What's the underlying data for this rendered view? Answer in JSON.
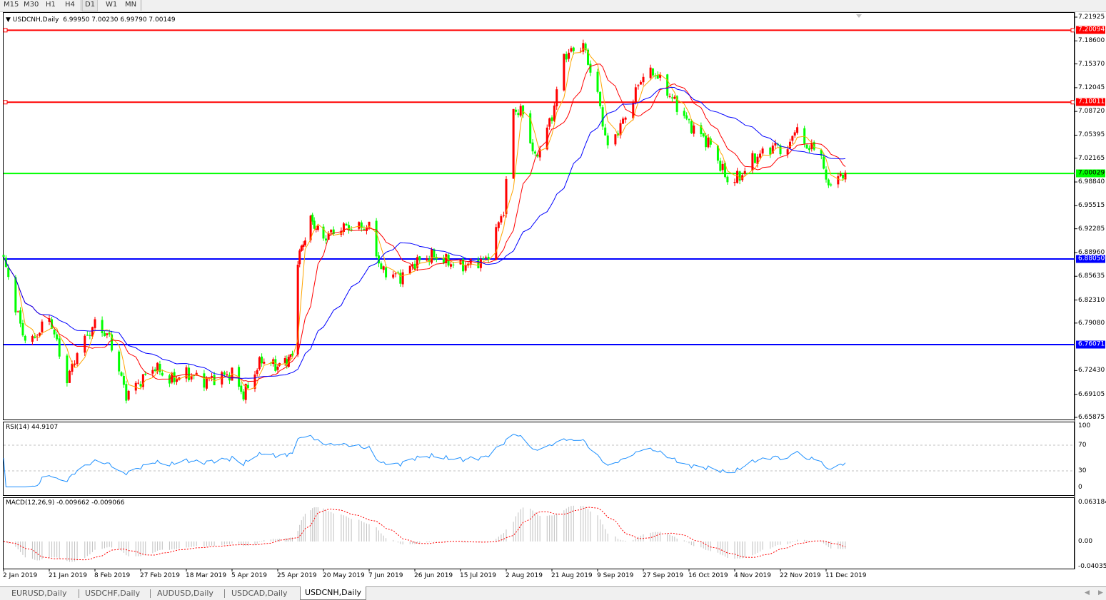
{
  "toolbar": {
    "timeframes": [
      "M15",
      "M30",
      "H1",
      "H4",
      "D1",
      "W1",
      "MN"
    ],
    "active": "D1"
  },
  "chart": {
    "symbol_header": "USDCNH,Daily",
    "ohlc": "6.99950 7.00230 6.99790 7.00149",
    "colors": {
      "up": "#ff0000",
      "down": "#00ff00",
      "ma_fast": "#ffa500",
      "ma_mid": "#ff0000",
      "ma_slow": "#0000ff",
      "rsi": "#1e90ff",
      "macd_hist": "#c0c0c0",
      "macd_signal": "#ff0000"
    }
  },
  "chart_data": {
    "type": "candlestick",
    "symbol": "USDCNH",
    "timeframe": "Daily",
    "price_axis_ticks": [
      "7.21925",
      "7.18600",
      "7.15370",
      "7.12045",
      "7.08720",
      "7.05395",
      "7.02165",
      "6.98840",
      "6.95515",
      "6.92285",
      "6.88960",
      "6.85635",
      "6.82310",
      "6.79080",
      "6.72430",
      "6.69105",
      "6.65875"
    ],
    "ylim": [
      6.65875,
      7.21925
    ],
    "horizontal_lines": [
      {
        "price": "7.20094",
        "color": "#ff0000"
      },
      {
        "price": "7.10011",
        "color": "#ff0000"
      },
      {
        "price": "7.00029",
        "color": "#00ff00"
      },
      {
        "price": "6.88050",
        "color": "#0000ff"
      },
      {
        "price": "6.76071",
        "color": "#0000ff"
      }
    ],
    "date_labels": [
      "2 Jan 2019",
      "21 Jan 2019",
      "8 Feb 2019",
      "27 Feb 2019",
      "18 Mar 2019",
      "5 Apr 2019",
      "25 Apr 2019",
      "20 May 2019",
      "7 Jun 2019",
      "26 Jun 2019",
      "15 Jul 2019",
      "2 Aug 2019",
      "21 Aug 2019",
      "9 Sep 2019",
      "27 Sep 2019",
      "16 Oct 2019",
      "4 Nov 2019",
      "22 Nov 2019",
      "11 Dec 2019"
    ],
    "approx_closes": [
      [
        "2019-01-02",
        6.88
      ],
      [
        "2019-01-10",
        6.775
      ],
      [
        "2019-01-14",
        6.765
      ],
      [
        "2019-01-21",
        6.8
      ],
      [
        "2019-01-28",
        6.71
      ],
      [
        "2019-02-01",
        6.75
      ],
      [
        "2019-02-08",
        6.79
      ],
      [
        "2019-02-14",
        6.77
      ],
      [
        "2019-02-21",
        6.69
      ],
      [
        "2019-02-27",
        6.71
      ],
      [
        "2019-03-05",
        6.73
      ],
      [
        "2019-03-11",
        6.71
      ],
      [
        "2019-03-18",
        6.72
      ],
      [
        "2019-03-25",
        6.71
      ],
      [
        "2019-04-05",
        6.72
      ],
      [
        "2019-04-10",
        6.69
      ],
      [
        "2019-04-18",
        6.74
      ],
      [
        "2019-04-25",
        6.73
      ],
      [
        "2019-05-03",
        6.745
      ],
      [
        "2019-05-06",
        6.88
      ],
      [
        "2019-05-13",
        6.935
      ],
      [
        "2019-05-20",
        6.91
      ],
      [
        "2019-05-27",
        6.925
      ],
      [
        "2019-06-07",
        6.925
      ],
      [
        "2019-06-12",
        6.865
      ],
      [
        "2019-06-20",
        6.855
      ],
      [
        "2019-06-26",
        6.875
      ],
      [
        "2019-07-03",
        6.885
      ],
      [
        "2019-07-15",
        6.87
      ],
      [
        "2019-07-25",
        6.88
      ],
      [
        "2019-08-01",
        6.95
      ],
      [
        "2019-08-05",
        7.09
      ],
      [
        "2019-08-09",
        7.085
      ],
      [
        "2019-08-14",
        7.02
      ],
      [
        "2019-08-21",
        7.08
      ],
      [
        "2019-08-26",
        7.165
      ],
      [
        "2019-09-03",
        7.18
      ],
      [
        "2019-09-09",
        7.11
      ],
      [
        "2019-09-13",
        7.035
      ],
      [
        "2019-09-20",
        7.08
      ],
      [
        "2019-09-27",
        7.14
      ],
      [
        "2019-10-02",
        7.14
      ],
      [
        "2019-10-08",
        7.11
      ],
      [
        "2019-10-16",
        7.07
      ],
      [
        "2019-10-25",
        7.04
      ],
      [
        "2019-11-01",
        6.99
      ],
      [
        "2019-11-06",
        6.995
      ],
      [
        "2019-11-11",
        7.02
      ],
      [
        "2019-11-20",
        7.04
      ],
      [
        "2019-11-25",
        7.03
      ],
      [
        "2019-11-28",
        7.065
      ],
      [
        "2019-12-02",
        7.04
      ],
      [
        "2019-12-09",
        7.03
      ],
      [
        "2019-12-11",
        6.985
      ],
      [
        "2019-12-17",
        6.995
      ],
      [
        "2019-12-19",
        7.00149
      ]
    ],
    "moving_averages": [
      "fast",
      "mid",
      "slow"
    ]
  },
  "rsi": {
    "label": "RSI(14) 44.9107",
    "ticks": [
      "100",
      "70",
      "30",
      "0"
    ],
    "levels": [
      70,
      30
    ]
  },
  "macd": {
    "label": "MACD(12,26,9) -0.009662 -0.009066",
    "ticks": [
      "0.063184",
      "0.00",
      "-0.040355"
    ]
  },
  "tabs": {
    "items": [
      "EURUSD,Daily",
      "USDCHF,Daily",
      "AUDUSD,Daily",
      "USDCAD,Daily",
      "USDCNH,Daily"
    ],
    "active": "USDCNH,Daily"
  },
  "scroll": {
    "left": "◀",
    "right": "▶"
  }
}
